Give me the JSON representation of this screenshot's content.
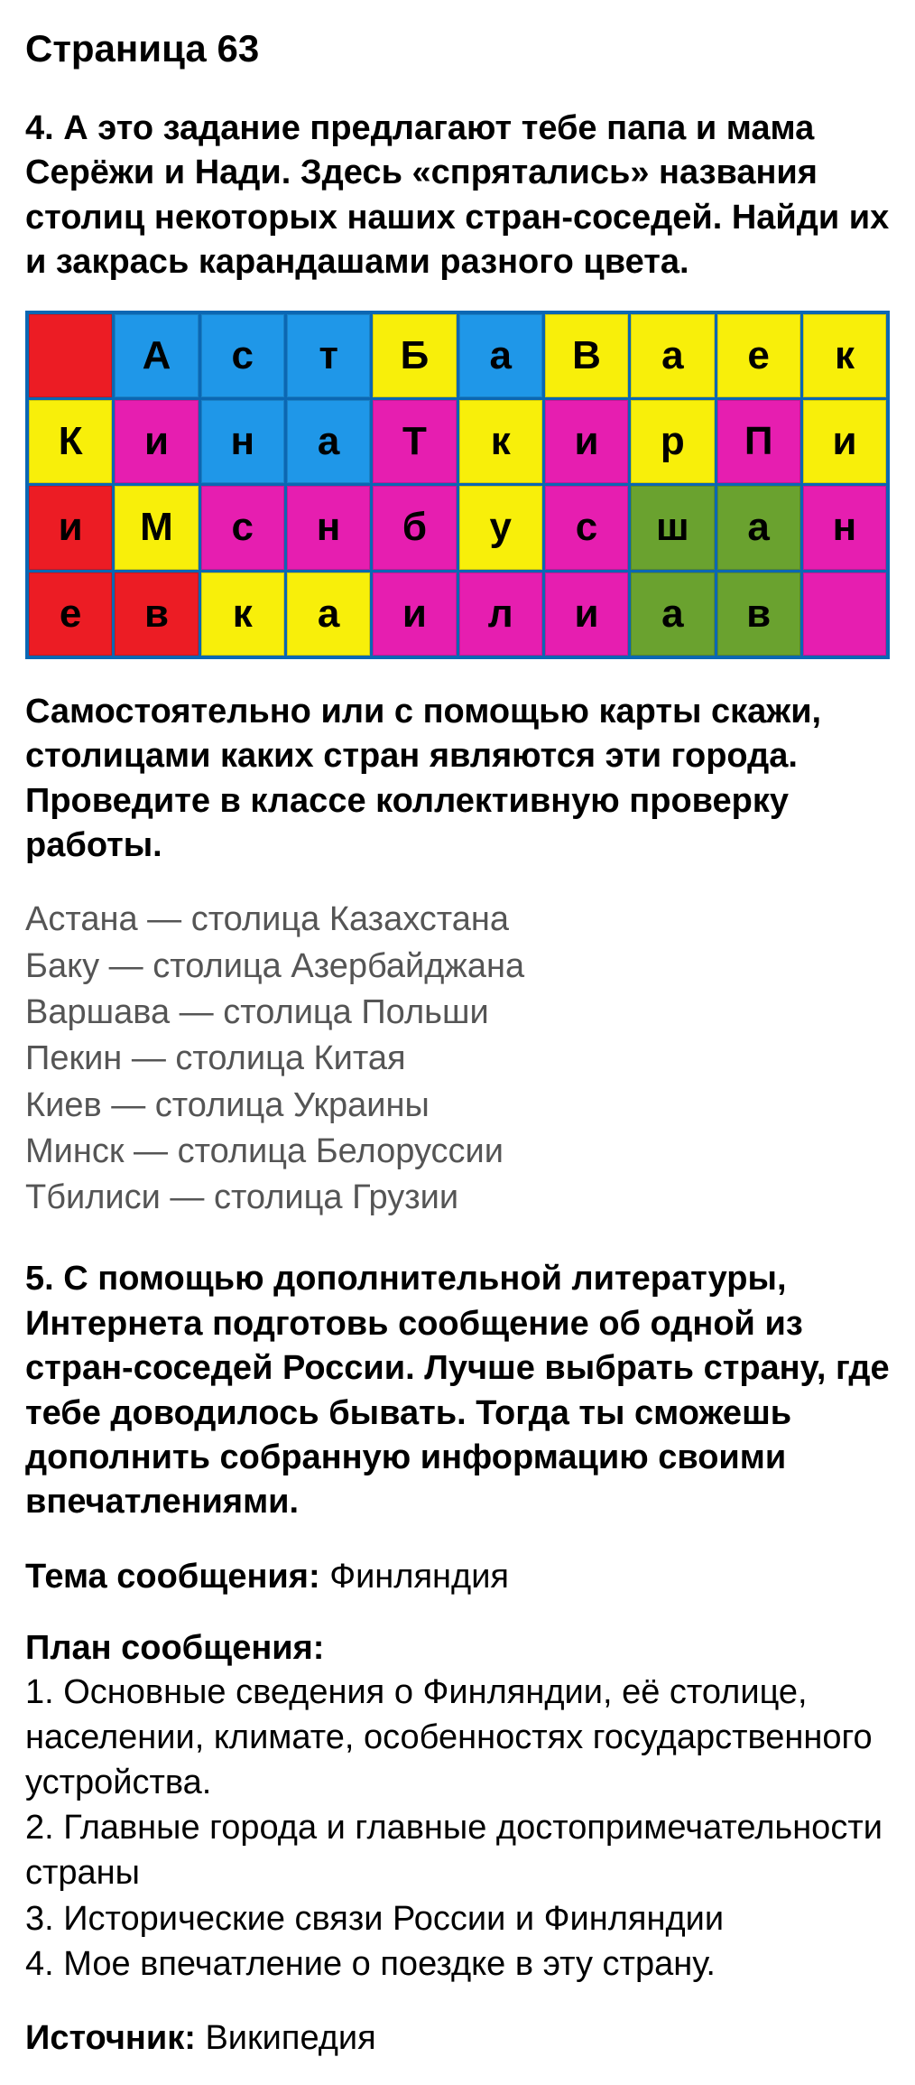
{
  "page_title": "Страница 63",
  "task4": {
    "intro": "4. А это задание предлагают тебе папа и мама Серёжи и Нади. Здесь «спрятались» названия столиц некоторых наших стран-соседей. Найди их и закрась карандашами разного цвета.",
    "grid": {
      "cols": 10,
      "rows": 4,
      "border_color": "#0b67b3",
      "colors": {
        "red": "#ec1c24",
        "blue": "#1f97e8",
        "yellow": "#f8ef0a",
        "magenta": "#e61eb0",
        "green": "#6aa22f"
      },
      "cells": [
        [
          {
            "t": "",
            "c": "red"
          },
          {
            "t": "А",
            "c": "blue"
          },
          {
            "t": "с",
            "c": "blue"
          },
          {
            "t": "т",
            "c": "blue"
          },
          {
            "t": "Б",
            "c": "yellow"
          },
          {
            "t": "а",
            "c": "blue"
          },
          {
            "t": "В",
            "c": "yellow"
          },
          {
            "t": "а",
            "c": "yellow"
          },
          {
            "t": "е",
            "c": "yellow"
          },
          {
            "t": "к",
            "c": "yellow"
          }
        ],
        [
          {
            "t": "К",
            "c": "yellow"
          },
          {
            "t": "и",
            "c": "magenta"
          },
          {
            "t": "н",
            "c": "blue"
          },
          {
            "t": "а",
            "c": "blue"
          },
          {
            "t": "Т",
            "c": "magenta"
          },
          {
            "t": "к",
            "c": "yellow"
          },
          {
            "t": "и",
            "c": "magenta"
          },
          {
            "t": "р",
            "c": "yellow"
          },
          {
            "t": "П",
            "c": "magenta"
          },
          {
            "t": "и",
            "c": "yellow"
          }
        ],
        [
          {
            "t": "и",
            "c": "red"
          },
          {
            "t": "М",
            "c": "yellow"
          },
          {
            "t": "c",
            "c": "magenta"
          },
          {
            "t": "н",
            "c": "magenta"
          },
          {
            "t": "б",
            "c": "magenta"
          },
          {
            "t": "у",
            "c": "yellow"
          },
          {
            "t": "c",
            "c": "magenta"
          },
          {
            "t": "ш",
            "c": "green"
          },
          {
            "t": "а",
            "c": "green"
          },
          {
            "t": "н",
            "c": "magenta"
          }
        ],
        [
          {
            "t": "е",
            "c": "red"
          },
          {
            "t": "в",
            "c": "red"
          },
          {
            "t": "к",
            "c": "yellow"
          },
          {
            "t": "а",
            "c": "yellow"
          },
          {
            "t": "и",
            "c": "magenta"
          },
          {
            "t": "л",
            "c": "magenta"
          },
          {
            "t": "и",
            "c": "magenta"
          },
          {
            "t": "а",
            "c": "green"
          },
          {
            "t": "в",
            "c": "green"
          },
          {
            "t": "",
            "c": "magenta"
          }
        ]
      ]
    },
    "mid": "Самостоятельно или с помощью карты скажи, столицами каких стран являются эти города. Проведите в классе коллективную проверку работы.",
    "answers": [
      "Астана — столица Казахстана",
      "Баку — столица Азербайджана",
      "Варшава — столица Польши",
      "Пекин — столица Китая",
      "Киев — столица Украины",
      "Минск — столица Белоруссии",
      "Тбилиси — столица Грузии"
    ]
  },
  "task5": {
    "intro": "5. С помощью дополнительной литературы, Интернета подготовь сообщение об одной из стран-соседей России. Лучше выбрать страну, где тебе доводилось бывать. Тогда ты сможешь дополнить собранную информацию своими впечатлениями.",
    "topic_label": "Тема сообщения:",
    "topic_value": "Финляндия",
    "plan_title": "План сообщения:",
    "plan": [
      "1. Основные сведения о Финляндии, её столице, населении, климате, особенностях государственного устройства.",
      "2. Главные города и главные достопримечательности страны",
      "3. Исторические связи России и Финляндии",
      "4. Мое впечатление о поездке в эту страну."
    ],
    "source_label": "Источник:",
    "source_value": "Википедия"
  }
}
